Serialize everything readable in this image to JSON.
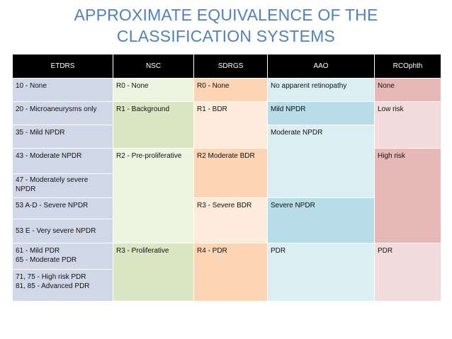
{
  "title": {
    "line1": "APPROXIMATE EQUIVALENCE OF THE",
    "line2": "CLASSIFICATION SYSTEMS"
  },
  "headers": [
    "ETDRS",
    "NSC",
    "SDRGS",
    "AAO",
    "RCOphth"
  ],
  "etdrs": {
    "r1": "10 - None",
    "r2": "20 - Microaneurysms only",
    "r3": "35 - Mild NPDR",
    "r4": "43 - Moderate NPDR",
    "r5": "47 - Moderately severe NPDR",
    "r6": "53 A-D - Severe NPDR",
    "r7": "53 E - Very severe NPDR",
    "r8": "61 - Mild PDR\n65 - Moderate PDR",
    "r9": "71, 75 - High risk PDR\n81, 85 - Advanced PDR"
  },
  "nsc": {
    "r0": "R0 - None",
    "r1": "R1 - Background",
    "r2": "R2 - Pre-proliferative",
    "r3": "R3 - Proliferative"
  },
  "sdrgs": {
    "r0": "R0 - None",
    "r1": "R1 - BDR",
    "r2": "R2 Moderate BDR",
    "r3": "R3 - Severe BDR",
    "r4": "R4 - PDR"
  },
  "aao": {
    "a1": "No apparent retinopathy",
    "a2": "Mild NPDR",
    "a3": "Moderate NPDR",
    "a4": "Severe NPDR",
    "a5": "PDR"
  },
  "rcophth": {
    "c1": "None",
    "c2": "Low risk",
    "c3": "High risk",
    "c4": "PDR"
  },
  "colors": {
    "title": "#4f81bd",
    "header_bg": "#000000",
    "etdrs": "#d0d8e8",
    "nsc": "#dbe6c4",
    "nsc_light": "#eef3e2",
    "sdrgs": "#fbd5b5",
    "sdrgs_light": "#fdebdc",
    "aao": "#b7dde8",
    "aao_light": "#dbeef3",
    "rcophth": "#e6b9b8",
    "rcophth_light": "#f2dcdb"
  }
}
